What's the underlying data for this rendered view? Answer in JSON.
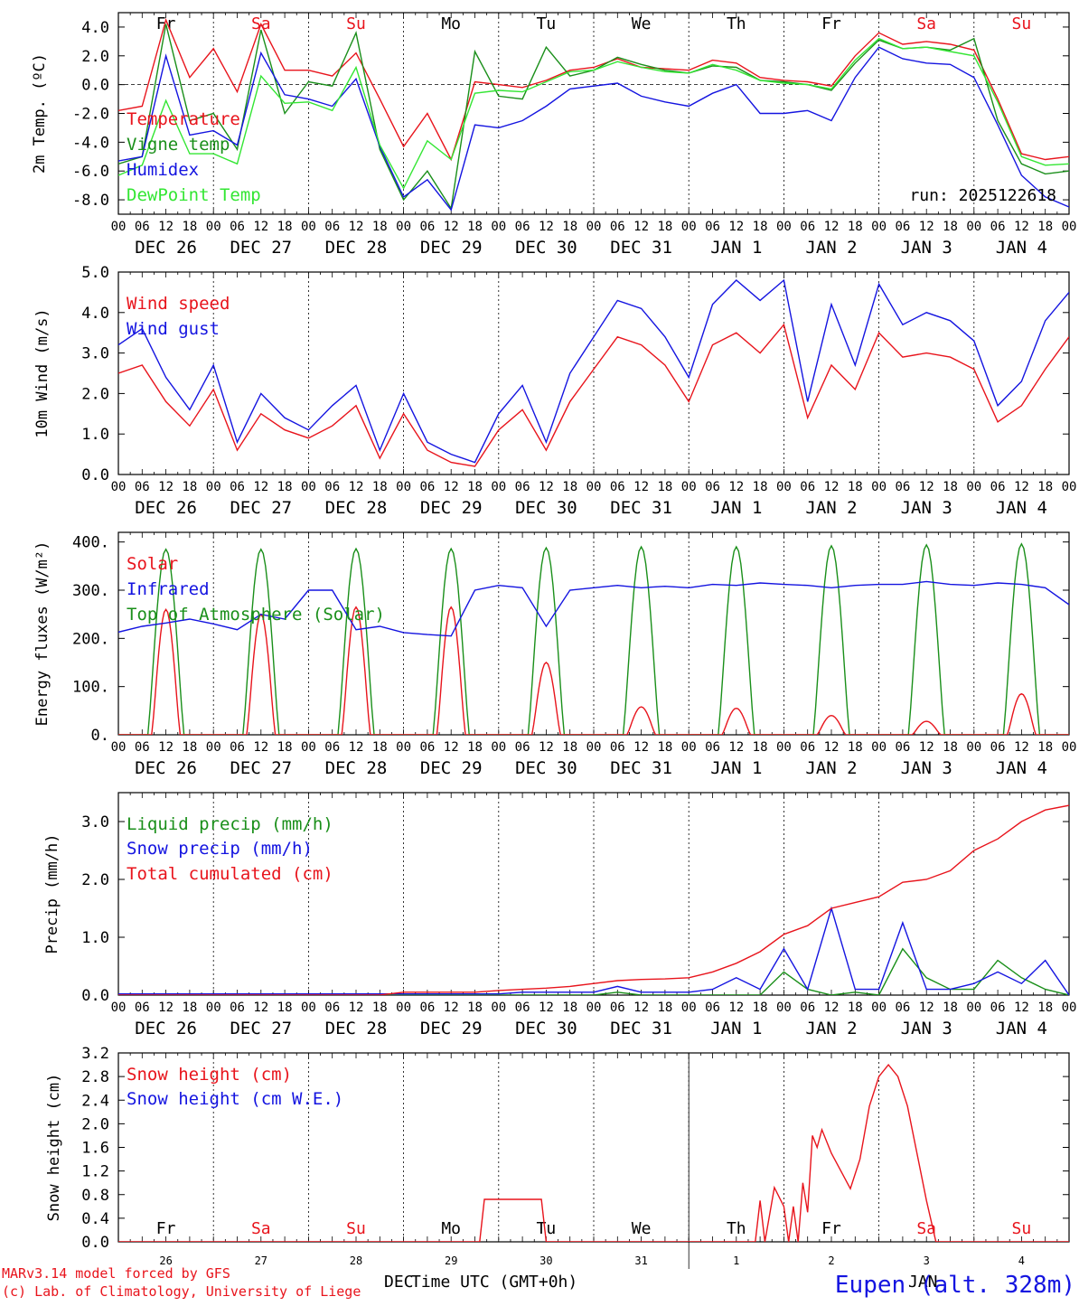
{
  "colors": {
    "red": "#e8141c",
    "darkgreen": "#1a8f1a",
    "blue": "#1414e0",
    "lightgreen": "#33e633",
    "black": "#000000"
  },
  "days": [
    "Fr",
    "Sa",
    "Su",
    "Mo",
    "Tu",
    "We",
    "Th",
    "Fr",
    "Sa",
    "Su"
  ],
  "day_colors": [
    "black",
    "red",
    "red",
    "black",
    "black",
    "black",
    "black",
    "black",
    "red",
    "red"
  ],
  "date_labels": [
    "DEC 26",
    "DEC 27",
    "DEC 28",
    "DEC 29",
    "DEC 30",
    "DEC 31",
    "JAN  1",
    "JAN  2",
    "JAN  3",
    "JAN  4"
  ],
  "hour_labels": [
    "00",
    "06",
    "12",
    "18"
  ],
  "last_hour_label": "00",
  "footer": {
    "line1": "MARv3.14 model forced by GFS",
    "line2": "(c) Lab. of Climatology, University of Liege",
    "xlabel": "Time UTC (GMT+0h)",
    "station": "Eupen (alt. 328m)",
    "bottom_dates": [
      "26",
      "27",
      "28",
      "29",
      "30",
      "31",
      "1",
      "2",
      "3",
      "4"
    ],
    "month_left": "DEC",
    "month_right": "JAN"
  },
  "chart_data": [
    {
      "type": "line",
      "id": "temp",
      "ylabel": "2m Temp. (ºC)",
      "run_label": "run: 2025122618",
      "ylim": [
        -9,
        5
      ],
      "yticks": [
        -8,
        -6,
        -4,
        -2,
        0,
        2,
        4
      ],
      "ytick_labels": [
        "-8.0",
        "-6.0",
        "-4.0",
        "-2.0",
        "0.0",
        "2.0",
        "4.0"
      ],
      "zero_line": true,
      "x_days": [
        0,
        0.25,
        0.5,
        0.75,
        1,
        1.25,
        1.5,
        1.75,
        2,
        2.25,
        2.5,
        2.75,
        3,
        3.25,
        3.5,
        3.75,
        4,
        4.25,
        4.5,
        4.75,
        5,
        5.25,
        5.5,
        5.75,
        6,
        6.25,
        6.5,
        6.75,
        7,
        7.25,
        7.5,
        7.75,
        8,
        8.25,
        8.5,
        8.75,
        9,
        9.25,
        9.5,
        9.75,
        10
      ],
      "series": [
        {
          "name": "Temperature",
          "color": "red",
          "values": [
            -1.8,
            -1.5,
            4.5,
            0.5,
            2.5,
            -0.5,
            4.2,
            1,
            1,
            0.6,
            2.2,
            -1,
            -4.3,
            -2,
            -5.2,
            0.2,
            0,
            -0.2,
            0.3,
            1,
            1.2,
            1.8,
            1.2,
            1.1,
            1,
            1.7,
            1.5,
            0.5,
            0.3,
            0.2,
            -0.1,
            2,
            3.6,
            2.8,
            3,
            2.8,
            2.4,
            -1,
            -4.8,
            -5.2,
            -5
          ]
        },
        {
          "name": "Vigne temp",
          "color": "darkgreen",
          "values": [
            -5.5,
            -5,
            4.2,
            -2.5,
            -2,
            -4.5,
            3.8,
            -2,
            0.2,
            -0.1,
            3.6,
            -4.5,
            -8,
            -6,
            -8.6,
            2.3,
            -0.8,
            -1,
            2.6,
            0.6,
            1,
            1.9,
            1.4,
            1,
            0.8,
            1.3,
            1.2,
            0.3,
            0.2,
            0,
            -0.4,
            1.5,
            3.1,
            2.5,
            2.6,
            2.4,
            3.2,
            -2.5,
            -5.5,
            -6.2,
            -6
          ]
        },
        {
          "name": "Humidex",
          "color": "blue",
          "values": [
            -5.3,
            -5,
            2,
            -3.5,
            -3.2,
            -4.2,
            2.2,
            -0.7,
            -1,
            -1.5,
            0.4,
            -4.3,
            -7.8,
            -6.6,
            -8.7,
            -2.8,
            -3,
            -2.5,
            -1.5,
            -0.3,
            -0.1,
            0.1,
            -0.8,
            -1.2,
            -1.5,
            -0.6,
            0,
            -2,
            -2,
            -1.8,
            -2.5,
            0.5,
            2.6,
            1.8,
            1.5,
            1.4,
            0.5,
            -2.8,
            -6.3,
            -7.8,
            -8.5
          ]
        },
        {
          "name": "DewPoint Temp",
          "color": "lightgreen",
          "values": [
            -6.3,
            -5.6,
            -1.1,
            -4.8,
            -4.8,
            -5.5,
            0.6,
            -1.3,
            -1.2,
            -1.8,
            1.2,
            -4.2,
            -7.2,
            -3.9,
            -5.2,
            -0.6,
            -0.4,
            -0.5,
            0.2,
            0.9,
            1,
            1.6,
            1.2,
            0.9,
            0.8,
            1.4,
            1,
            0.3,
            0.1,
            0,
            -0.3,
            1.7,
            3.2,
            2.5,
            2.6,
            2.3,
            2,
            -1.2,
            -5,
            -5.6,
            -5.5
          ]
        }
      ]
    },
    {
      "type": "line",
      "id": "wind",
      "ylabel": "10m Wind (m/s)",
      "ylim": [
        0,
        5
      ],
      "yticks": [
        0,
        1,
        2,
        3,
        4,
        5
      ],
      "ytick_labels": [
        "0.0",
        "1.0",
        "2.0",
        "3.0",
        "4.0",
        "5.0"
      ],
      "x_days": [
        0,
        0.25,
        0.5,
        0.75,
        1,
        1.25,
        1.5,
        1.75,
        2,
        2.25,
        2.5,
        2.75,
        3,
        3.25,
        3.5,
        3.75,
        4,
        4.25,
        4.5,
        4.75,
        5,
        5.25,
        5.5,
        5.75,
        6,
        6.25,
        6.5,
        6.75,
        7,
        7.25,
        7.5,
        7.75,
        8,
        8.25,
        8.5,
        8.75,
        9,
        9.25,
        9.5,
        9.75,
        10
      ],
      "series": [
        {
          "name": "Wind speed",
          "color": "red",
          "values": [
            2.5,
            2.7,
            1.8,
            1.2,
            2.1,
            0.6,
            1.5,
            1.1,
            0.9,
            1.2,
            1.7,
            0.4,
            1.5,
            0.6,
            0.3,
            0.2,
            1.1,
            1.6,
            0.6,
            1.8,
            2.6,
            3.4,
            3.2,
            2.7,
            1.8,
            3.2,
            3.5,
            3,
            3.7,
            1.4,
            2.7,
            2.1,
            3.5,
            2.9,
            3,
            2.9,
            2.6,
            1.3,
            1.7,
            2.6,
            3.4
          ]
        },
        {
          "name": "Wind gust",
          "color": "blue",
          "values": [
            3.2,
            3.6,
            2.4,
            1.6,
            2.7,
            0.8,
            2,
            1.4,
            1.1,
            1.7,
            2.2,
            0.6,
            2,
            0.8,
            0.5,
            0.3,
            1.5,
            2.2,
            0.8,
            2.5,
            3.4,
            4.3,
            4.1,
            3.4,
            2.4,
            4.2,
            4.8,
            4.3,
            4.8,
            1.8,
            4.2,
            2.7,
            4.7,
            3.7,
            4,
            3.8,
            3.3,
            1.7,
            2.3,
            3.8,
            4.5
          ]
        }
      ]
    },
    {
      "type": "line",
      "id": "energy",
      "ylabel": "Energy fluxes (W/m²)",
      "ylim": [
        0,
        420
      ],
      "yticks": [
        0,
        100,
        200,
        300,
        400
      ],
      "ytick_labels": [
        "0.",
        "100.",
        "200.",
        "300.",
        "400."
      ],
      "x_days": [
        0,
        0.25,
        0.5,
        0.75,
        1,
        1.25,
        1.5,
        1.75,
        2,
        2.25,
        2.5,
        2.75,
        3,
        3.25,
        3.5,
        3.75,
        4,
        4.25,
        4.5,
        4.75,
        5,
        5.25,
        5.5,
        5.75,
        6,
        6.25,
        6.5,
        6.75,
        7,
        7.25,
        7.5,
        7.75,
        8,
        8.25,
        8.5,
        8.75,
        9,
        9.25,
        9.5,
        9.75,
        10
      ],
      "toa_peaks": [
        385,
        385,
        386,
        386,
        388,
        390,
        390,
        392,
        394,
        396
      ],
      "solar_peaks": [
        260,
        250,
        265,
        265,
        150,
        58,
        55,
        40,
        28,
        85
      ],
      "series": [
        {
          "name": "Solar",
          "color": "red",
          "values": []
        },
        {
          "name": "Infrared",
          "color": "blue",
          "values": [
            213,
            225,
            232,
            240,
            230,
            218,
            250,
            240,
            300,
            300,
            218,
            225,
            212,
            208,
            205,
            300,
            310,
            305,
            225,
            300,
            305,
            310,
            305,
            308,
            305,
            312,
            310,
            315,
            312,
            310,
            305,
            310,
            312,
            312,
            318,
            312,
            310,
            315,
            312,
            305,
            270
          ]
        },
        {
          "name": "Top of Atmosphere (Solar)",
          "color": "darkgreen",
          "values": []
        }
      ]
    },
    {
      "type": "line",
      "id": "precip",
      "ylabel": "Precip (mm/h)",
      "ylim": [
        0,
        3.5
      ],
      "yticks": [
        0,
        1,
        2,
        3
      ],
      "ytick_labels": [
        "0.0",
        "1.0",
        "2.0",
        "3.0"
      ],
      "x_days": [
        0,
        0.25,
        0.5,
        0.75,
        1,
        1.25,
        1.5,
        1.75,
        2,
        2.25,
        2.5,
        2.75,
        3,
        3.25,
        3.5,
        3.75,
        4,
        4.25,
        4.5,
        4.75,
        5,
        5.25,
        5.5,
        5.75,
        6,
        6.25,
        6.5,
        6.75,
        7,
        7.25,
        7.5,
        7.75,
        8,
        8.25,
        8.5,
        8.75,
        9,
        9.25,
        9.5,
        9.75,
        10
      ],
      "series": [
        {
          "name": "Liquid precip (mm/h)",
          "color": "darkgreen",
          "values": [
            0,
            0,
            0,
            0,
            0,
            0,
            0,
            0,
            0,
            0,
            0,
            0,
            0,
            0,
            0,
            0,
            0,
            0,
            0,
            0,
            0,
            0.05,
            0,
            0,
            0,
            0,
            0,
            0,
            0.4,
            0.1,
            0,
            0.05,
            0,
            0.8,
            0.3,
            0.1,
            0.1,
            0.6,
            0.3,
            0.1,
            0
          ]
        },
        {
          "name": "Snow precip (mm/h)",
          "color": "blue",
          "values": [
            0.02,
            0.02,
            0.02,
            0.02,
            0.02,
            0.02,
            0.02,
            0.02,
            0.02,
            0.02,
            0.02,
            0.02,
            0.02,
            0.02,
            0.02,
            0.02,
            0.02,
            0.05,
            0.05,
            0.05,
            0.05,
            0.15,
            0.05,
            0.05,
            0.05,
            0.1,
            0.3,
            0.1,
            0.8,
            0.1,
            1.5,
            0.1,
            0.1,
            1.25,
            0.1,
            0.1,
            0.2,
            0.4,
            0.2,
            0.6,
            0
          ]
        },
        {
          "name": "Total cumulated (cm)",
          "color": "red",
          "values": [
            0,
            0,
            0,
            0,
            0,
            0,
            0,
            0,
            0,
            0,
            0,
            0,
            0.05,
            0.05,
            0.05,
            0.05,
            0.08,
            0.1,
            0.12,
            0.15,
            0.2,
            0.25,
            0.27,
            0.28,
            0.3,
            0.4,
            0.55,
            0.75,
            1.05,
            1.2,
            1.5,
            1.6,
            1.7,
            1.95,
            2,
            2.15,
            2.5,
            2.7,
            3,
            3.2,
            3.28
          ]
        }
      ]
    },
    {
      "type": "line",
      "id": "snow",
      "ylabel": "Snow height (cm)",
      "ylim": [
        0,
        3.2
      ],
      "yticks": [
        0,
        0.4,
        0.8,
        1.2,
        1.6,
        2,
        2.4,
        2.8,
        3.2
      ],
      "ytick_labels": [
        "0.0",
        "0.4",
        "0.8",
        "1.2",
        "1.6",
        "2.0",
        "2.4",
        "2.8",
        "3.2"
      ],
      "x_days": [
        0,
        1,
        2,
        3,
        3.8,
        3.85,
        4,
        4.25,
        4.4,
        4.45,
        4.5,
        4.55,
        6,
        6.7,
        6.75,
        6.8,
        6.9,
        7,
        7.05,
        7.1,
        7.15,
        7.2,
        7.25,
        7.3,
        7.35,
        7.4,
        7.5,
        7.6,
        7.7,
        7.8,
        7.9,
        8,
        8.1,
        8.2,
        8.3,
        8.4,
        8.5,
        8.6,
        8.7,
        8.8,
        9,
        9.5,
        10
      ],
      "series": [
        {
          "name": "Snow height (cm)",
          "color": "red",
          "values": [
            0,
            0,
            0,
            0,
            0,
            0.72,
            0.72,
            0.72,
            0.72,
            0.72,
            0,
            0,
            0,
            0,
            0.7,
            0,
            0.92,
            0.6,
            0,
            0.6,
            0,
            1.0,
            0.5,
            1.8,
            1.6,
            1.9,
            1.5,
            1.2,
            0.9,
            1.4,
            2.3,
            2.8,
            3.0,
            2.8,
            2.3,
            1.5,
            0.7,
            0,
            0,
            0,
            0,
            0,
            0
          ]
        },
        {
          "name": "Snow height (cm W.E.)",
          "color": "blue",
          "values": []
        }
      ]
    }
  ]
}
